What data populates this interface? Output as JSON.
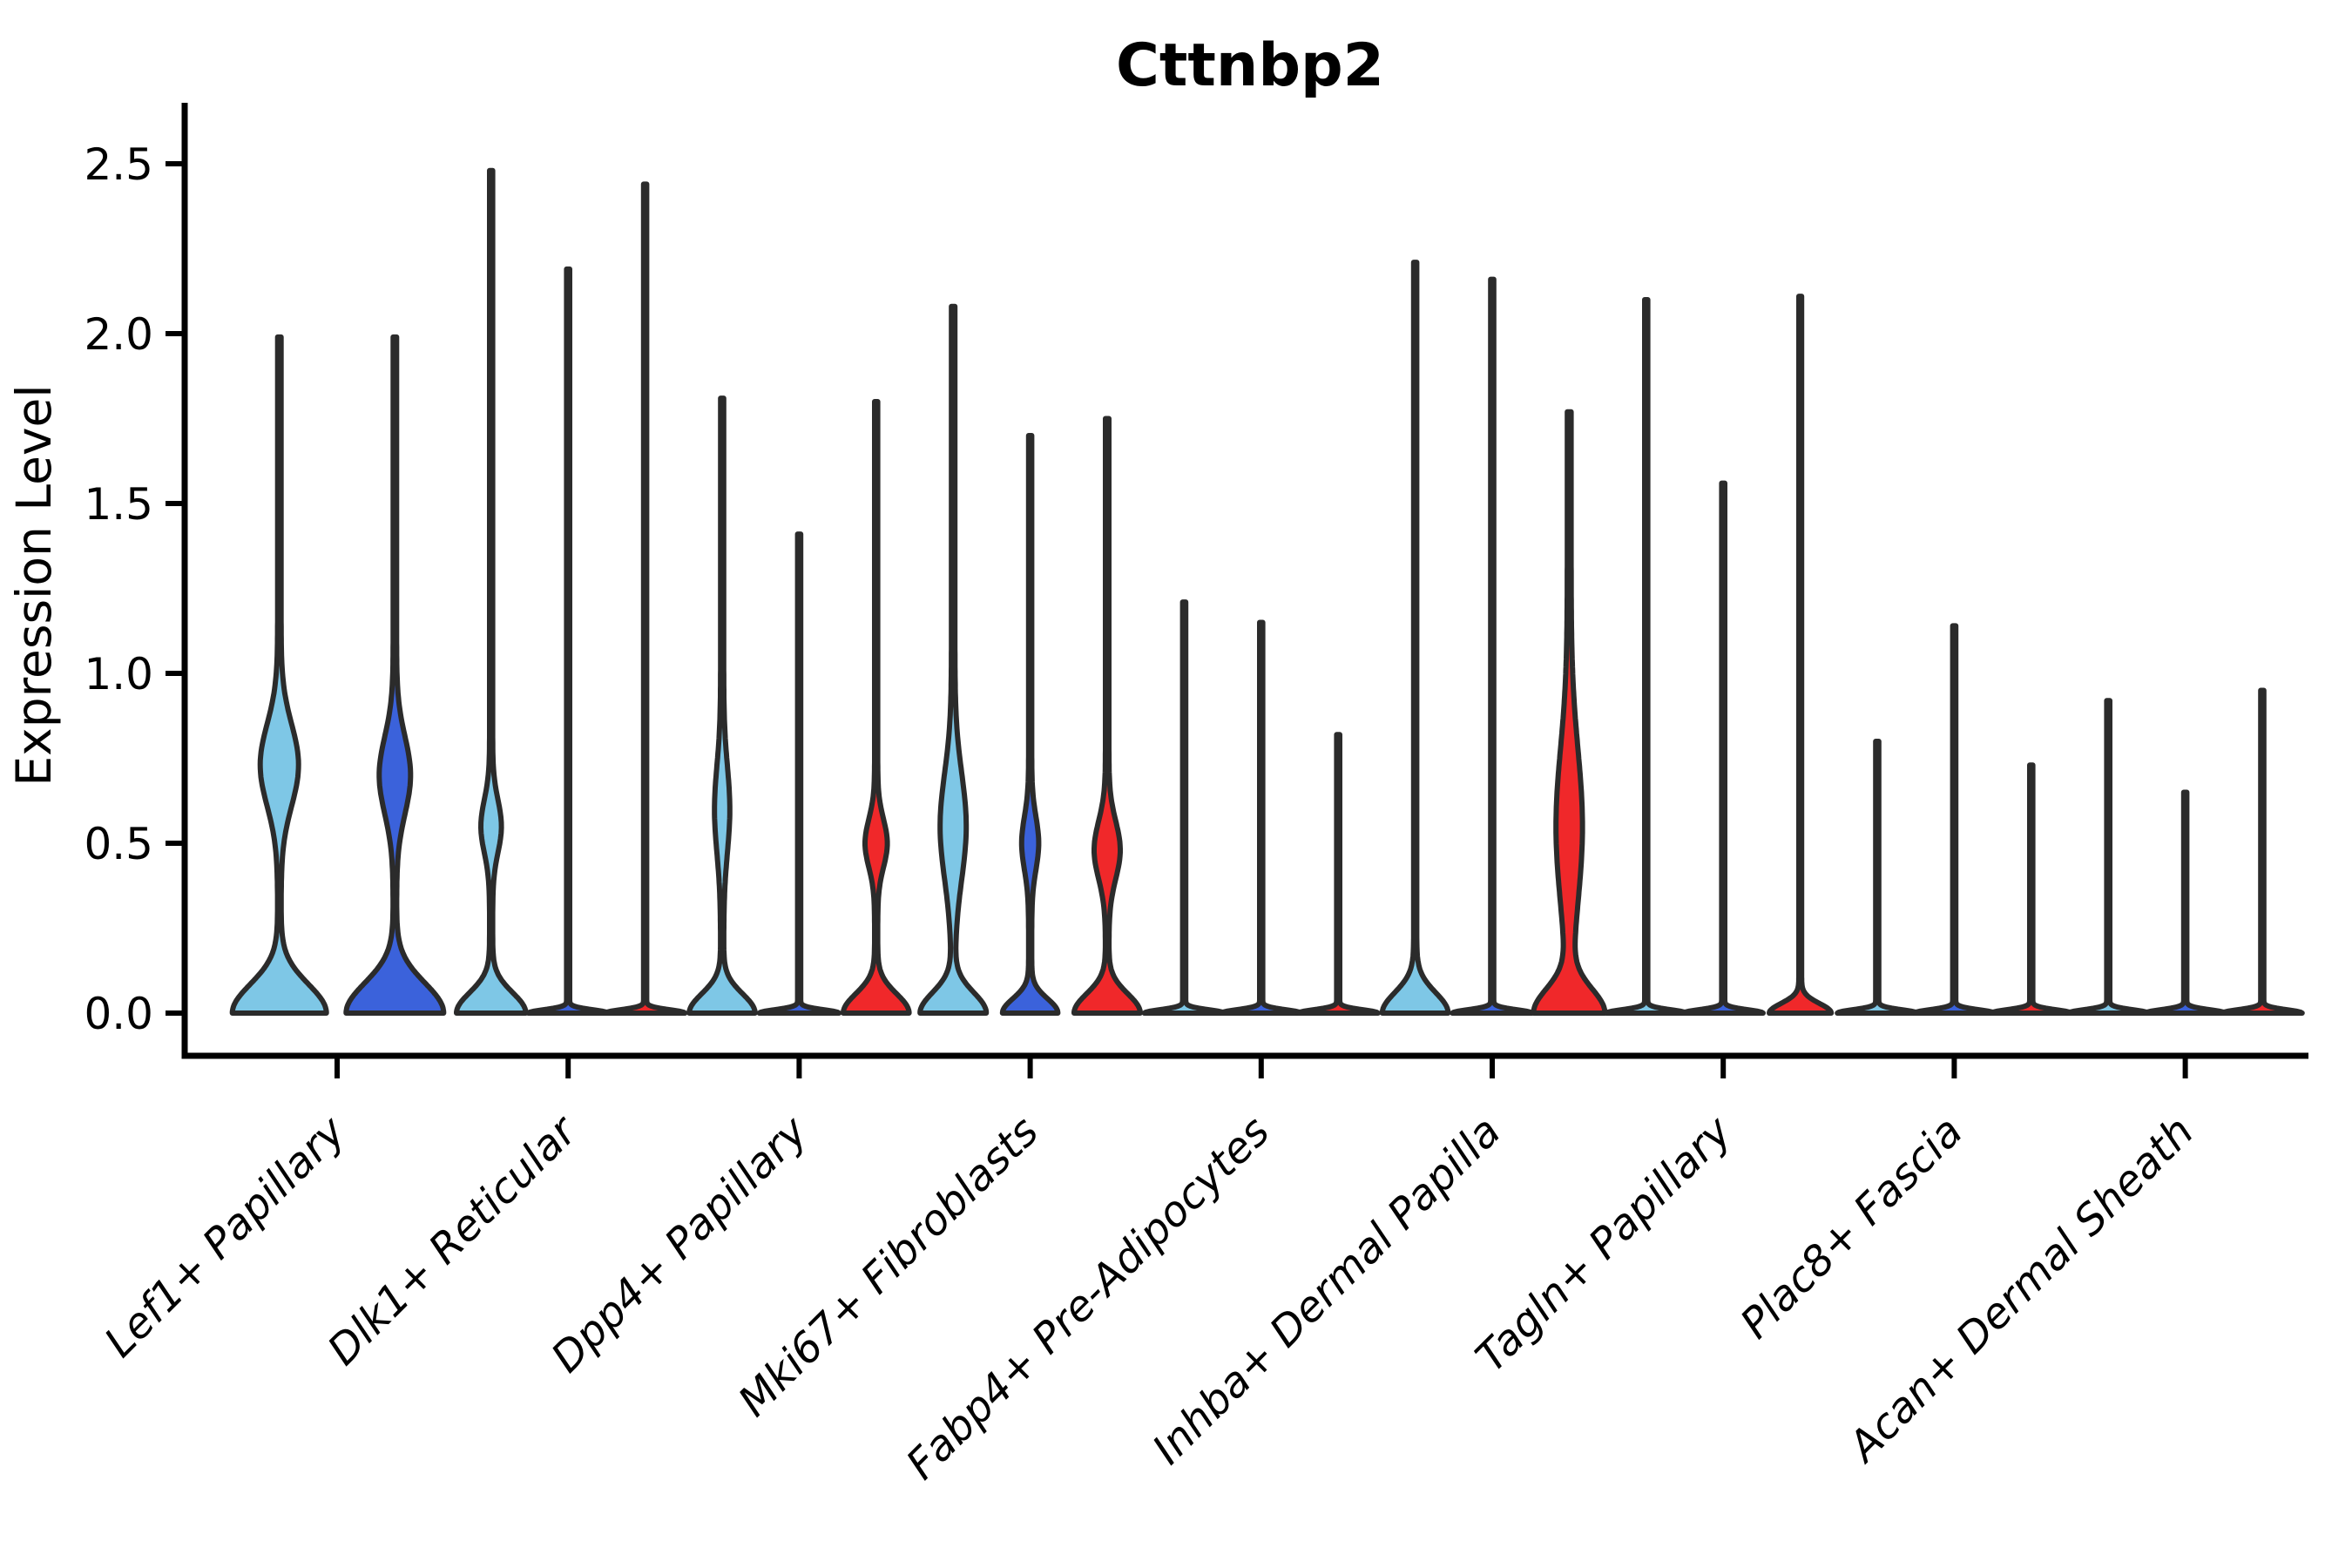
{
  "chart_data": {
    "type": "violin",
    "title": "Cttnbp2",
    "xlabel": "",
    "ylabel": "Expression Level",
    "legend_position": "none",
    "grid": false,
    "ylim": [
      -0.13,
      2.69
    ],
    "ytick_values": [
      0.0,
      0.5,
      1.0,
      1.5,
      2.0,
      2.5
    ],
    "ytick_labels": [
      "0.0",
      "0.5",
      "1.0",
      "1.5",
      "2.0",
      "2.5"
    ],
    "categories": [
      "Lef1+ Papillary",
      "Dlk1+ Reticular",
      "Dpp4+ Papillary",
      "Mki67+ Fibroblasts",
      "Fabp4+ Pre-Adipocytes",
      "Inhba+ Dermal Papilla",
      "Tagln+ Papillary",
      "Plac8+ Fascia",
      "Acan+ Dermal Sheath"
    ],
    "split_levels": [
      "sky_blue",
      "royal_blue",
      "red"
    ],
    "colors": {
      "sky_blue": "#7EC7E6",
      "royal_blue": "#3B62DB",
      "red": "#F0282A",
      "outline": "#2B2B2B",
      "axis": "#000000"
    },
    "thin_shape_default": {
      "base_hw": 44,
      "base_sigma": 0.014,
      "stem_hw": 1.8,
      "bulge": null
    },
    "violins": [
      {
        "category": 0,
        "slot": 0,
        "color": "sky_blue",
        "max_expression": 1.99,
        "shape": {
          "base_hw": 52,
          "base_sigma": 0.12,
          "stem_hw": 2.0,
          "bulge": {
            "hw": 20,
            "center": 0.73,
            "sigma": 0.17
          }
        }
      },
      {
        "category": 0,
        "slot": 1,
        "color": "royal_blue",
        "max_expression": 1.99,
        "shape": {
          "base_hw": 54,
          "base_sigma": 0.125,
          "stem_hw": 2.0,
          "bulge": {
            "hw": 16,
            "center": 0.7,
            "sigma": 0.16
          }
        }
      },
      {
        "category": 1,
        "slot": 0,
        "color": "sky_blue",
        "max_expression": 2.48,
        "shape": {
          "base_hw": 38,
          "base_sigma": 0.085,
          "stem_hw": 1.8,
          "bulge": {
            "hw": 10,
            "center": 0.55,
            "sigma": 0.11
          }
        }
      },
      {
        "category": 1,
        "slot": 1,
        "color": "royal_blue",
        "max_expression": 2.19,
        "shape": "thin"
      },
      {
        "category": 1,
        "slot": 2,
        "color": "red",
        "max_expression": 2.44,
        "shape": "thin"
      },
      {
        "category": 2,
        "slot": 0,
        "color": "sky_blue",
        "max_expression": 1.81,
        "shape": {
          "base_hw": 36,
          "base_sigma": 0.08,
          "stem_hw": 1.8,
          "bulge": {
            "hw": 7,
            "center": 0.6,
            "sigma": 0.18
          }
        }
      },
      {
        "category": 2,
        "slot": 1,
        "color": "royal_blue",
        "max_expression": 1.41,
        "shape": "thin"
      },
      {
        "category": 2,
        "slot": 2,
        "color": "red",
        "max_expression": 1.8,
        "shape": {
          "base_hw": 36,
          "base_sigma": 0.08,
          "stem_hw": 1.8,
          "bulge": {
            "hw": 11,
            "center": 0.5,
            "sigma": 0.1
          }
        }
      },
      {
        "category": 3,
        "slot": 0,
        "color": "sky_blue",
        "max_expression": 2.08,
        "shape": {
          "base_hw": 36,
          "base_sigma": 0.085,
          "stem_hw": 2.0,
          "bulge": {
            "hw": 13,
            "center": 0.55,
            "sigma": 0.22
          }
        }
      },
      {
        "category": 3,
        "slot": 1,
        "color": "royal_blue",
        "max_expression": 1.7,
        "shape": {
          "base_hw": 30,
          "base_sigma": 0.06,
          "stem_hw": 1.8,
          "bulge": {
            "hw": 8,
            "center": 0.5,
            "sigma": 0.11
          }
        }
      },
      {
        "category": 3,
        "slot": 2,
        "color": "red",
        "max_expression": 1.75,
        "shape": {
          "base_hw": 36,
          "base_sigma": 0.08,
          "stem_hw": 2.0,
          "bulge": {
            "hw": 13,
            "center": 0.48,
            "sigma": 0.12
          }
        }
      },
      {
        "category": 4,
        "slot": 0,
        "color": "sky_blue",
        "max_expression": 1.21,
        "shape": "thin"
      },
      {
        "category": 4,
        "slot": 1,
        "color": "royal_blue",
        "max_expression": 1.15,
        "shape": "thin"
      },
      {
        "category": 4,
        "slot": 2,
        "color": "red",
        "max_expression": 0.82,
        "shape": "thin"
      },
      {
        "category": 5,
        "slot": 0,
        "color": "sky_blue",
        "max_expression": 2.21,
        "shape": {
          "base_hw": 36,
          "base_sigma": 0.085,
          "stem_hw": 1.8,
          "bulge": null
        }
      },
      {
        "category": 5,
        "slot": 1,
        "color": "royal_blue",
        "max_expression": 2.16,
        "shape": "thin"
      },
      {
        "category": 5,
        "slot": 2,
        "color": "red",
        "max_expression": 1.77,
        "shape": {
          "base_hw": 38,
          "base_sigma": 0.1,
          "stem_hw": 2.2,
          "bulge": {
            "hw": 13,
            "center": 0.55,
            "sigma": 0.32
          }
        }
      },
      {
        "category": 6,
        "slot": 0,
        "color": "sky_blue",
        "max_expression": 2.1,
        "shape": "thin"
      },
      {
        "category": 6,
        "slot": 1,
        "color": "royal_blue",
        "max_expression": 1.56,
        "shape": "thin"
      },
      {
        "category": 6,
        "slot": 2,
        "color": "red",
        "max_expression": 2.11,
        "shape": {
          "base_hw": 34,
          "base_sigma": 0.04,
          "stem_hw": 1.6,
          "bulge": null
        }
      },
      {
        "category": 7,
        "slot": 0,
        "color": "sky_blue",
        "max_expression": 0.8,
        "shape": "thin"
      },
      {
        "category": 7,
        "slot": 1,
        "color": "royal_blue",
        "max_expression": 1.14,
        "shape": "thin"
      },
      {
        "category": 7,
        "slot": 2,
        "color": "red",
        "max_expression": 0.73,
        "shape": "thin"
      },
      {
        "category": 8,
        "slot": 0,
        "color": "sky_blue",
        "max_expression": 0.92,
        "shape": "thin"
      },
      {
        "category": 8,
        "slot": 1,
        "color": "royal_blue",
        "max_expression": 0.65,
        "shape": "thin"
      },
      {
        "category": 8,
        "slot": 2,
        "color": "red",
        "max_expression": 0.95,
        "shape": "thin"
      }
    ]
  }
}
